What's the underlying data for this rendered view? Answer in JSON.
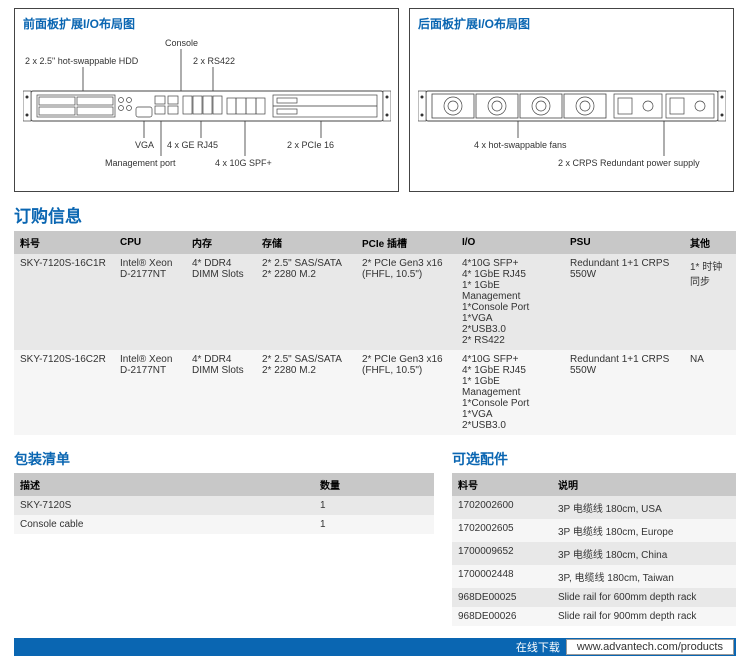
{
  "front_diagram": {
    "title": "前面板扩展I/O布局图",
    "callouts": {
      "console": "Console",
      "hdd": "2 x 2.5\" hot-swappable HDD",
      "rs422": "2 x RS422",
      "vga": "VGA",
      "ge_rj45": "4 x GE RJ45",
      "mgmt_port": "Management port",
      "spf": "4 x 10G SPF+",
      "pcie": "2 x PCIe 16"
    }
  },
  "rear_diagram": {
    "title": "后面板扩展I/O布局图",
    "callouts": {
      "fans": "4 x hot-swappable fans",
      "psu": "2 x CRPS Redundant power supply"
    }
  },
  "ordering": {
    "heading": "订购信息",
    "columns": [
      "料号",
      "CPU",
      "内存",
      "存储",
      "PCIe 插槽",
      "I/O",
      "PSU",
      "其他"
    ],
    "rows": [
      {
        "pn": "SKY-7120S-16C1R",
        "cpu": "Intel® Xeon D-2177NT",
        "mem": "4* DDR4 DIMM Slots",
        "storage": "2* 2.5\" SAS/SATA\n2* 2280 M.2",
        "pcie": "2* PCIe Gen3 x16 (FHFL, 10.5\")",
        "io": "4*10G SFP+\n4* 1GbE RJ45\n1* 1GbE Management\n1*Console Port\n1*VGA\n2*USB3.0\n2* RS422",
        "psu": "Redundant 1+1 CRPS 550W",
        "other": "1* 时钟同步"
      },
      {
        "pn": "SKY-7120S-16C2R",
        "cpu": "Intel® Xeon D-2177NT",
        "mem": "4* DDR4 DIMM Slots",
        "storage": "2* 2.5\" SAS/SATA\n2* 2280 M.2",
        "pcie": "2* PCIe Gen3 x16 (FHFL, 10.5\")",
        "io": "4*10G SFP+\n4* 1GbE RJ45\n1* 1GbE Management\n1*Console Port\n1*VGA\n2*USB3.0",
        "psu": "Redundant 1+1 CRPS 550W",
        "other": "NA"
      }
    ]
  },
  "packing": {
    "heading": "包装清单",
    "columns": [
      "描述",
      "数量"
    ],
    "rows": [
      {
        "desc": "SKY-7120S",
        "qty": "1"
      },
      {
        "desc": "Console cable",
        "qty": "1"
      }
    ]
  },
  "accessories": {
    "heading": "可选配件",
    "columns": [
      "料号",
      "说明"
    ],
    "rows": [
      {
        "pn": "1702002600",
        "desc": "3P 电缆线 180cm, USA"
      },
      {
        "pn": "1702002605",
        "desc": "3P 电缆线 180cm, Europe"
      },
      {
        "pn": "1700009652",
        "desc": "3P 电缆线 180cm, China"
      },
      {
        "pn": "1700002448",
        "desc": "3P, 电缆线 180cm, Taiwan"
      },
      {
        "pn": "968DE00025",
        "desc": "Slide rail for 600mm depth rack"
      },
      {
        "pn": "968DE00026",
        "desc": "Slide rail for 900mm depth rack"
      }
    ]
  },
  "footer": {
    "label": "在线下载",
    "url": "www.advantech.com/products"
  },
  "colors": {
    "brand": "#0a66b2",
    "header_bg": "#c8c8c8",
    "row_alt": "#e8e8e8"
  }
}
